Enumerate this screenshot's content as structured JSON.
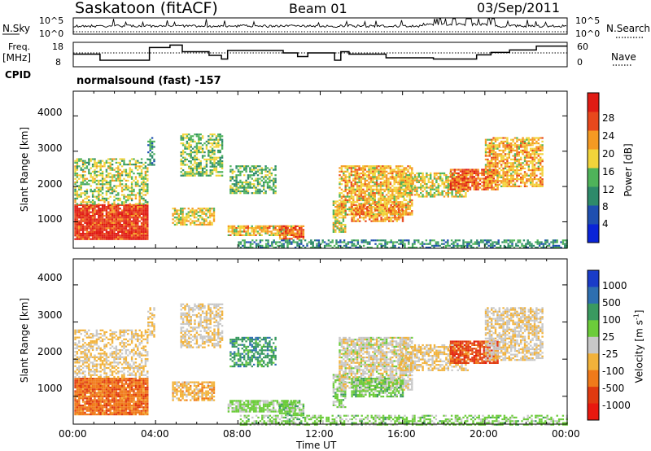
{
  "header": {
    "title": "Saskatoon (fitACF)",
    "beam": "Beam 01",
    "date": "03/Sep/2011"
  },
  "left_labels": {
    "nsky": "N.Sky",
    "freq_line1": "Freq.",
    "freq_line2": "[MHz]",
    "cpid": "CPID"
  },
  "right_labels": {
    "nsearch": "N.Search",
    "nave": "Nave"
  },
  "cpid_text": "normalsound (fast) -157",
  "chart_data": [
    {
      "type": "line",
      "panel": "noise",
      "ticks_left": [
        "10^5",
        "10^0"
      ],
      "ticks_right": [
        "10^5",
        "10^0"
      ],
      "note": "N.Sky (solid) and N.Search (dotted) noise levels, log scale"
    },
    {
      "type": "line",
      "panel": "frequency",
      "ylim_left": [
        8,
        18
      ],
      "ylim_right": [
        0,
        60
      ],
      "ticks_left": [
        "18",
        "8"
      ],
      "ticks_right": [
        "60",
        "0"
      ],
      "freq_steps": [
        {
          "t": 0.0,
          "v": 13.5
        },
        {
          "t": 1.3,
          "v": 11.0
        },
        {
          "t": 3.7,
          "v": 16.2
        },
        {
          "t": 4.7,
          "v": 17.2
        },
        {
          "t": 5.3,
          "v": 14.5
        },
        {
          "t": 6.6,
          "v": 13.0
        },
        {
          "t": 7.2,
          "v": 11.5
        },
        {
          "t": 7.5,
          "v": 15.0
        },
        {
          "t": 10.2,
          "v": 14.0
        },
        {
          "t": 10.9,
          "v": 12.5
        },
        {
          "t": 11.4,
          "v": 14.0
        },
        {
          "t": 12.7,
          "v": 11.0
        },
        {
          "t": 13.0,
          "v": 14.5
        },
        {
          "t": 13.4,
          "v": 13.5
        },
        {
          "t": 15.2,
          "v": 12.0
        },
        {
          "t": 17.5,
          "v": 11.5
        },
        {
          "t": 19.6,
          "v": 13.2
        },
        {
          "t": 20.3,
          "v": 14.2
        },
        {
          "t": 21.2,
          "v": 15.2
        },
        {
          "t": 22.5,
          "v": 16.8
        },
        {
          "t": 23.5,
          "v": 16.8
        }
      ],
      "nave_level": 14.0
    },
    {
      "type": "heatmap",
      "panel": "power",
      "ylabel": "Slant Range [km]",
      "yticks": [
        "1000",
        "2000",
        "3000",
        "4000"
      ],
      "ylim": [
        250,
        4700
      ],
      "colorbar_label": "Power [dB]",
      "colorbar_ticks": [
        "4",
        "8",
        "12",
        "16",
        "20",
        "24",
        "28"
      ],
      "colorbar_range": [
        0,
        30
      ],
      "colors": [
        "#0a24d8",
        "#1f4fb0",
        "#2e8a6a",
        "#4fb35a",
        "#f2d43b",
        "#f59a23",
        "#e8481c",
        "#e01b14"
      ]
    },
    {
      "type": "heatmap",
      "panel": "velocity",
      "ylabel": "Slant Range [km]",
      "yticks": [
        "1000",
        "2000",
        "3000",
        "4000"
      ],
      "ylim": [
        250,
        4700
      ],
      "colorbar_label": "Velocity [m s^-1]",
      "colorbar_ticks": [
        "1000",
        "500",
        "100",
        "25",
        "-25",
        "-100",
        "-500",
        "-1000"
      ],
      "colors": [
        "#1a3cc8",
        "#2e6fb0",
        "#3a9a60",
        "#6ccc3a",
        "#c8c8c8",
        "#f2b23a",
        "#f07a1a",
        "#e03a10",
        "#e8180f"
      ]
    }
  ],
  "time_axis": {
    "ticks": [
      "00:00",
      "04:00",
      "08:00",
      "12:00",
      "16:00",
      "20:00",
      "00:00"
    ],
    "label": "Time UT"
  },
  "colors": {
    "axis": "#000000",
    "velocity_grey": "#c8c8c8"
  }
}
